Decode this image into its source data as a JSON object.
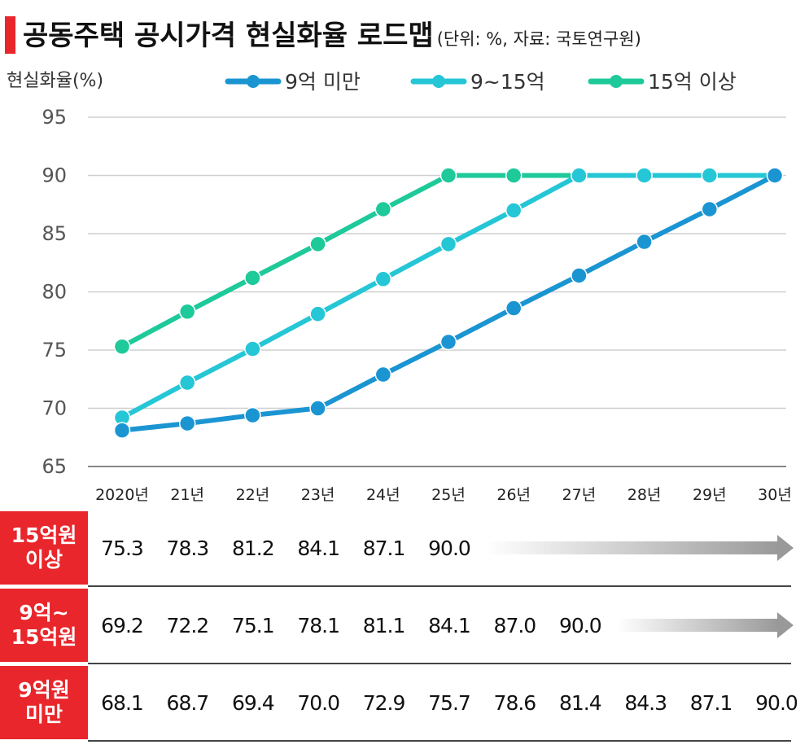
{
  "title": "공동주택 공시가격 현실화율 로드맵",
  "title_note": "(단위: %, 자료: 국토연구원)",
  "chart_data": {
    "type": "line",
    "ylabel": "현실화율(%)",
    "ylim": [
      65,
      95
    ],
    "yticks": [
      95,
      90,
      85,
      80,
      75,
      70,
      65
    ],
    "grid": true,
    "legend_position": "top",
    "categories": [
      "2020년",
      "21년",
      "22년",
      "23년",
      "24년",
      "25년",
      "26년",
      "27년",
      "28년",
      "29년",
      "30년"
    ],
    "series": [
      {
        "name": "9억 미만",
        "color": "#1b95d2",
        "values": [
          68.1,
          68.7,
          69.4,
          70.0,
          72.9,
          75.7,
          78.6,
          81.4,
          84.3,
          87.1,
          90.0
        ]
      },
      {
        "name": "9~15억",
        "color": "#25c6d6",
        "values": [
          69.2,
          72.2,
          75.1,
          78.1,
          81.1,
          84.1,
          87.0,
          90.0,
          90.0,
          90.0,
          90.0
        ]
      },
      {
        "name": "15억 이상",
        "color": "#1ec99a",
        "values": [
          75.3,
          78.3,
          81.2,
          84.1,
          87.1,
          90.0,
          90.0,
          90.0,
          90.0,
          90.0,
          90.0
        ]
      }
    ]
  },
  "table": {
    "rows": [
      {
        "label": "15억원\n이상",
        "values": [
          "75.3",
          "78.3",
          "81.2",
          "84.1",
          "87.1",
          "90.0"
        ]
      },
      {
        "label": "9억~\n15억원",
        "values": [
          "69.2",
          "72.2",
          "75.1",
          "78.1",
          "81.1",
          "84.1",
          "87.0",
          "90.0"
        ]
      },
      {
        "label": "9억원\n미만",
        "values": [
          "68.1",
          "68.7",
          "69.4",
          "70.0",
          "72.9",
          "75.7",
          "78.6",
          "81.4",
          "84.3",
          "87.1",
          "90.0"
        ]
      }
    ]
  }
}
